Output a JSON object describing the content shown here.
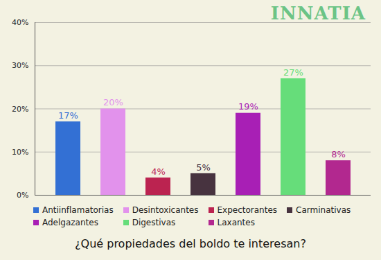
{
  "chart_data": {
    "type": "bar",
    "title": "¿Qué propiedades del boldo te interesan?",
    "annotations": [
      "INNATIA"
    ],
    "categories": [
      "Antiinflamatorias",
      "Desintoxicantes",
      "Expectorantes",
      "Carminativas",
      "Adelgazantes",
      "Digestivas",
      "Laxantes"
    ],
    "values": [
      17,
      20,
      4,
      5,
      19,
      27,
      8
    ],
    "value_labels": [
      "17%",
      "20%",
      "4%",
      "5%",
      "19%",
      "27%",
      "8%"
    ],
    "colors": [
      "#3370d4",
      "#e292ec",
      "#bb2350",
      "#47333f",
      "#a81fb5",
      "#66dd7a",
      "#b2288f"
    ],
    "ylim": [
      0,
      40
    ],
    "yticks": [
      {
        "value": 0,
        "label": "0%"
      },
      {
        "value": 10,
        "label": "10%"
      },
      {
        "value": 20,
        "label": "20%"
      },
      {
        "value": 30,
        "label": "30%"
      },
      {
        "value": 40,
        "label": "40%"
      }
    ],
    "grid": true,
    "data_labels": true,
    "legend": "bottom",
    "tick_labels": "y"
  }
}
